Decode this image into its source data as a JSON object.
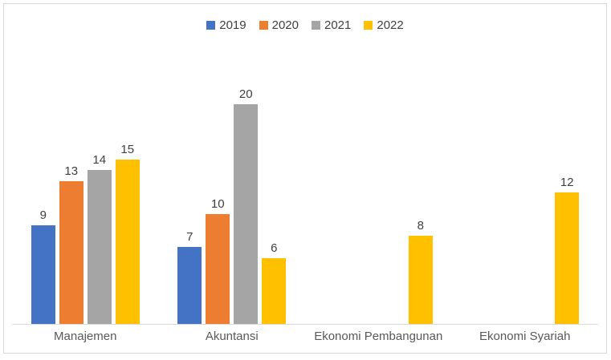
{
  "chart_data": {
    "type": "bar",
    "title": "",
    "categories": [
      "Manajemen",
      "Akuntansi",
      "Ekonomi Pembangunan",
      "Ekonomi Syariah"
    ],
    "series": [
      {
        "name": "2019",
        "color": "#4472C4",
        "values": [
          9,
          7,
          null,
          null
        ]
      },
      {
        "name": "2020",
        "color": "#ED7D31",
        "values": [
          13,
          10,
          null,
          null
        ]
      },
      {
        "name": "2021",
        "color": "#A5A5A5",
        "values": [
          14,
          20,
          null,
          null
        ]
      },
      {
        "name": "2022",
        "color": "#FFC000",
        "values": [
          15,
          6,
          8,
          12
        ]
      }
    ],
    "xlabel": "",
    "ylabel": "",
    "ylim": [
      0,
      20
    ],
    "grid": false,
    "legend_position": "top",
    "data_labels": true,
    "axis_line_color": "#D9D9D9",
    "frame_color": "#D6D6D6",
    "label_color": "#404040",
    "category_label_color": "#595959"
  }
}
